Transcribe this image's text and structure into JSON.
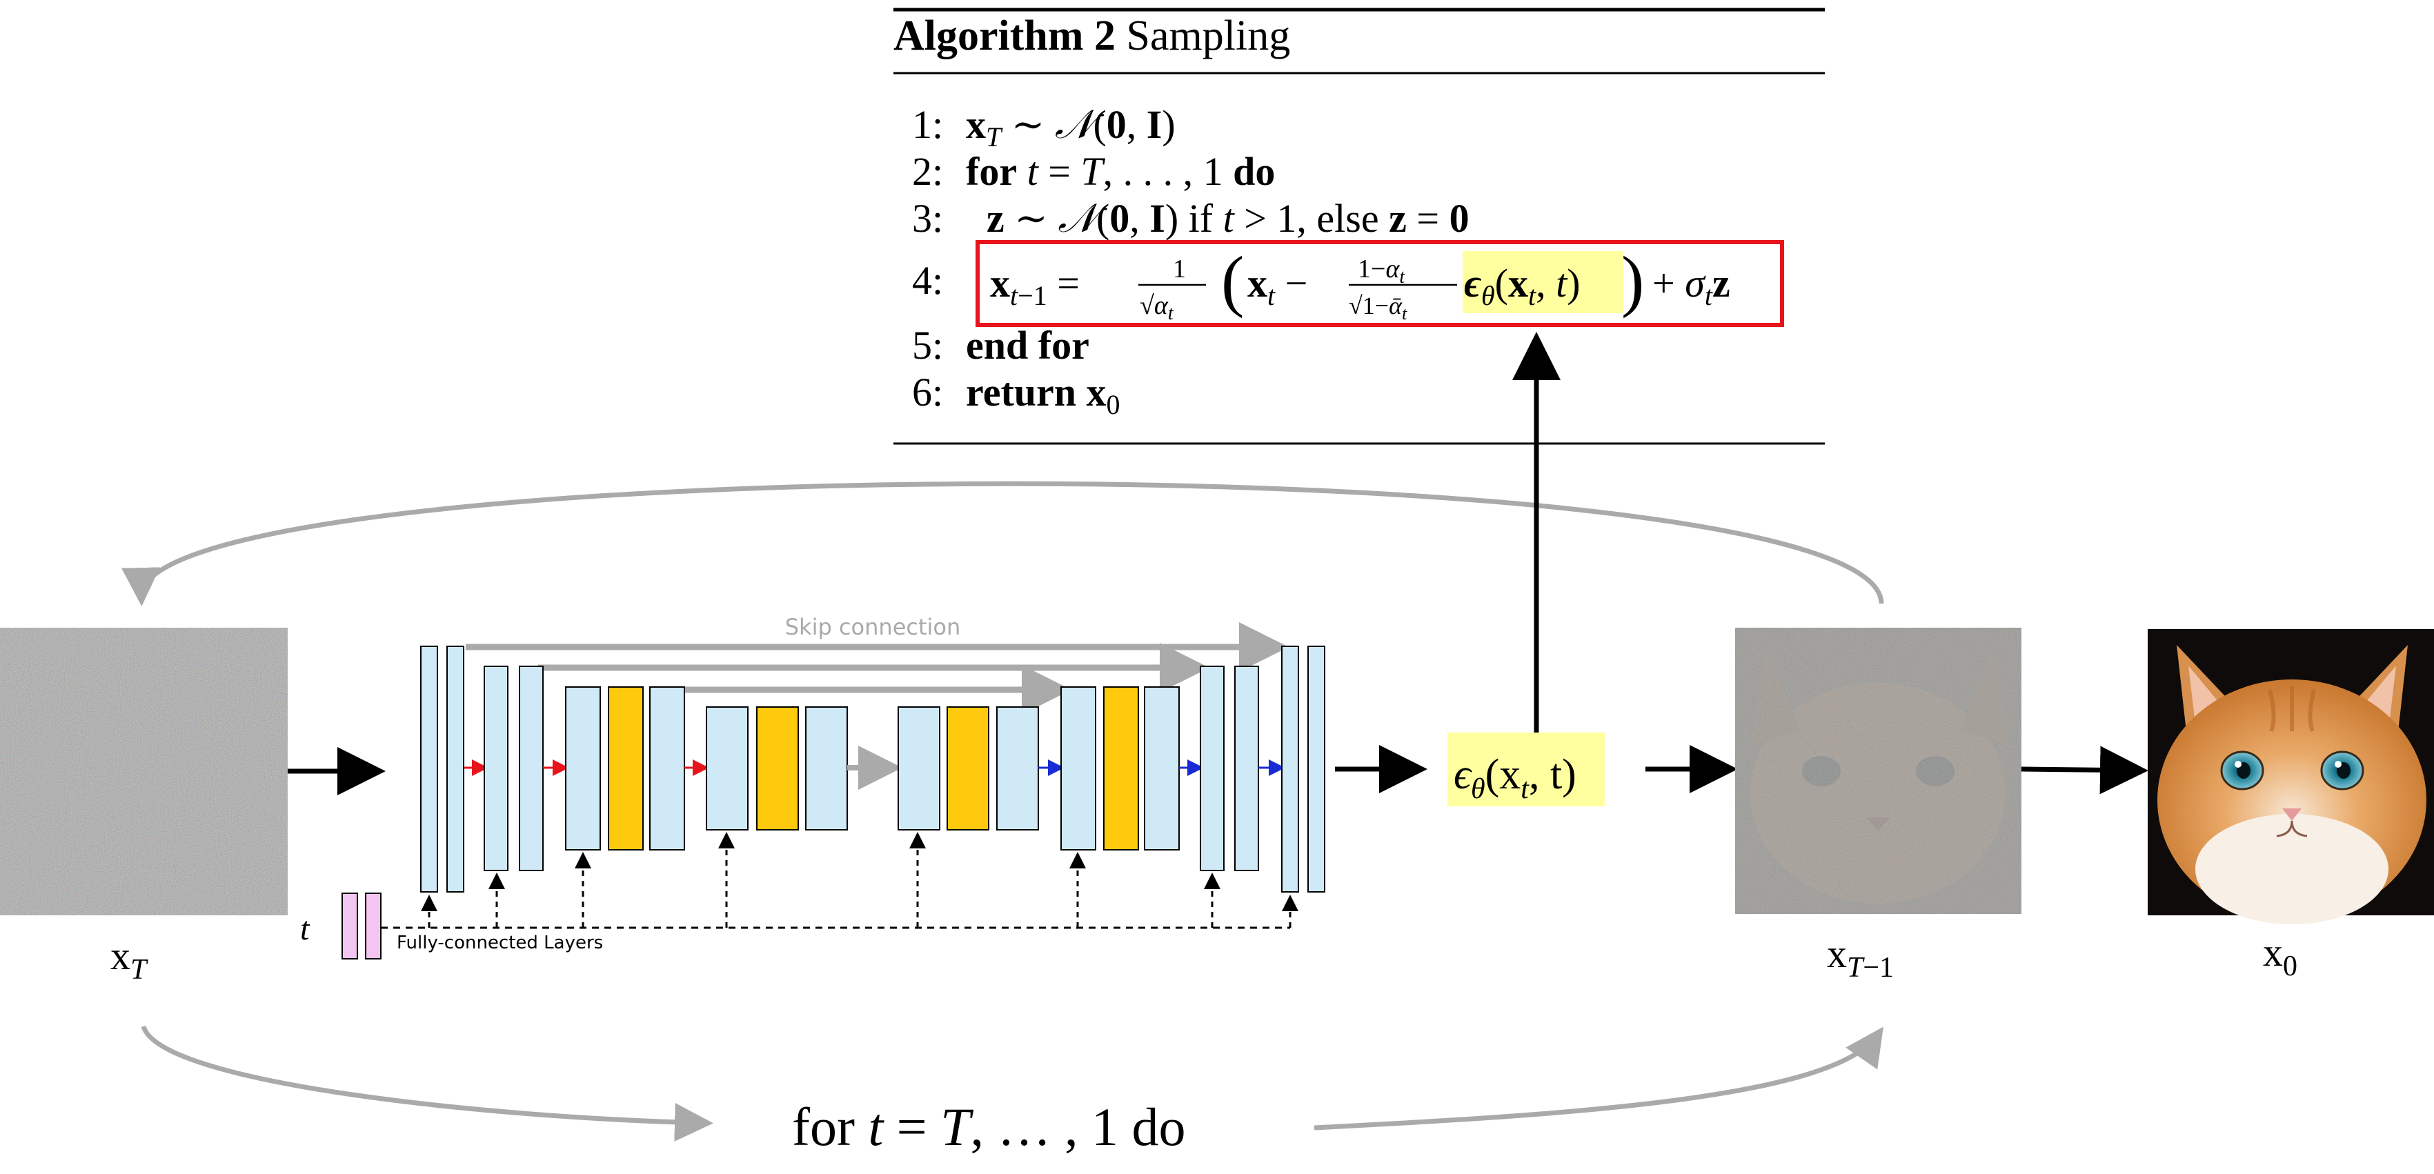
{
  "algorithm": {
    "title_bold": "Algorithm 2",
    "title_rest": " Sampling",
    "lines": [
      {
        "num": "1:",
        "text": "x_T ~ N(0, I)"
      },
      {
        "num": "2:",
        "text": "for t = T, . . . , 1 do"
      },
      {
        "num": "3:",
        "text": "z ~ N(0, I) if t > 1, else z = 0"
      },
      {
        "num": "4:",
        "text": "x_{t−1} = 1/√α_t ( x_t − (1−α_t)/√(1−ᾱ_t) ε_θ(x_t, t) ) + σ_t z"
      },
      {
        "num": "5:",
        "text": "end for"
      },
      {
        "num": "6:",
        "text": "return x_0"
      }
    ],
    "highlight_color": "#FFFFA0",
    "box_color": "#E8141C"
  },
  "unet": {
    "skip_label": "Skip connection",
    "fc_label": "Fully-connected Layers",
    "t_label": "t",
    "block_color": "#CFEAF6",
    "attention_color": "#FFC90E",
    "fc_color": "#F2C6F0",
    "skip_color": "#AAAAAA",
    "down_arrow_color": "#E8141C",
    "up_arrow_color": "#1A2BD6"
  },
  "output_label": "εθ(xt, t)",
  "image_labels": {
    "xT": "xT",
    "xT1": "xT−1",
    "x0": "x0"
  },
  "loop_label": "for t = T, … , 1 do",
  "images": [
    {
      "name": "noise-image-xT",
      "description": "pure noise"
    },
    {
      "name": "noisy-cat-image",
      "description": "partially denoised cat"
    },
    {
      "name": "cat-image-x0",
      "description": "clean orange cat"
    }
  ]
}
